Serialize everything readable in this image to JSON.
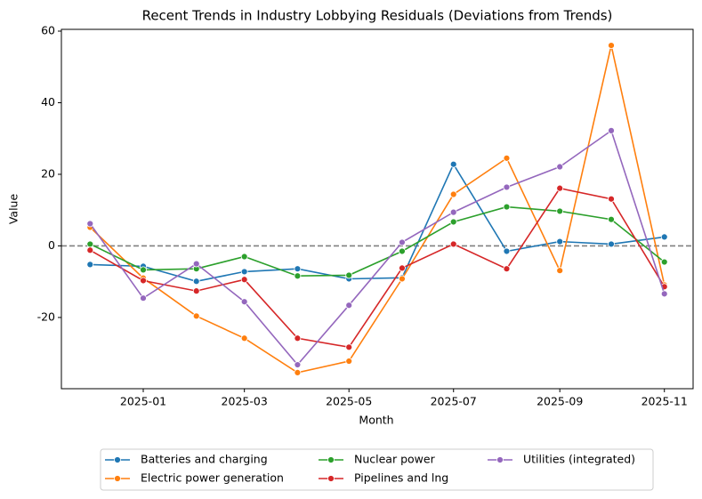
{
  "chart_data": {
    "type": "line",
    "title": "Recent Trends in Industry Lobbying Residuals (Deviations from Trends)",
    "xlabel": "Month",
    "ylabel": "Value",
    "x": [
      "2024-12",
      "2025-01",
      "2025-02",
      "2025-03",
      "2025-04",
      "2025-05",
      "2025-06",
      "2025-07",
      "2025-08",
      "2025-09",
      "2025-10",
      "2025-11"
    ],
    "xticks": [
      "2025-01",
      "2025-03",
      "2025-05",
      "2025-07",
      "2025-09",
      "2025-11"
    ],
    "ylim": [
      -39.9,
      60.5
    ],
    "yticks": [
      -20,
      0,
      20,
      40,
      60
    ],
    "hline": 0,
    "grid": false,
    "legend": "bottom",
    "series": [
      {
        "name": "Batteries and charging",
        "color": "#1f77b4",
        "values": [
          -5.2,
          -5.7,
          -9.9,
          -7.2,
          -6.4,
          -9.2,
          -8.9,
          22.8,
          -1.5,
          1.2,
          0.5,
          2.5
        ]
      },
      {
        "name": "Electric power generation",
        "color": "#ff7f0e",
        "values": [
          5.2,
          -9.0,
          -19.6,
          -25.8,
          -35.4,
          -32.2,
          -9.2,
          14.4,
          24.5,
          -6.9,
          56.0,
          -10.9
        ]
      },
      {
        "name": "Nuclear power",
        "color": "#2ca02c",
        "values": [
          0.5,
          -6.7,
          -6.4,
          -3.0,
          -8.4,
          -8.2,
          -1.5,
          6.7,
          10.9,
          9.7,
          7.4,
          -4.5
        ]
      },
      {
        "name": "Pipelines and lng",
        "color": "#d62728",
        "values": [
          -1.2,
          -9.7,
          -12.6,
          -9.4,
          -25.8,
          -28.3,
          -6.2,
          0.5,
          -6.4,
          16.1,
          13.1,
          -11.4
        ]
      },
      {
        "name": "Utilities (integrated)",
        "color": "#9467bd",
        "values": [
          6.2,
          -14.6,
          -5.0,
          -15.6,
          -33.2,
          -16.6,
          1.0,
          9.4,
          16.4,
          22.1,
          32.2,
          -13.4
        ]
      }
    ]
  }
}
